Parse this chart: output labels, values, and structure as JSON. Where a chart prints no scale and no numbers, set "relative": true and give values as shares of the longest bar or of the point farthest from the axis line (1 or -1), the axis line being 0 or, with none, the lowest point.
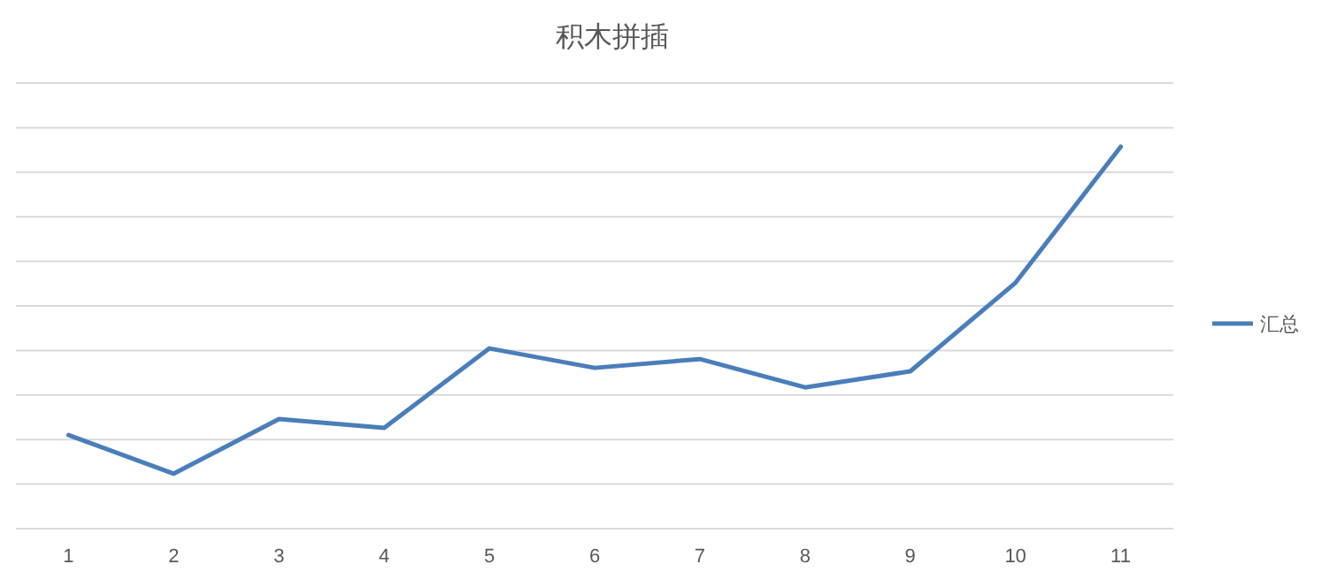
{
  "chart_data": {
    "type": "line",
    "title": "积木拼插",
    "categories": [
      "1",
      "2",
      "3",
      "4",
      "5",
      "6",
      "7",
      "8",
      "9",
      "10",
      "11"
    ],
    "relative": true,
    "grid": true,
    "legend": "right",
    "line_style": "solid",
    "marker": "none",
    "series": [
      {
        "name": "汇总",
        "color": "#4a7ebb",
        "values": [
          0.245,
          0.144,
          0.287,
          0.264,
          0.472,
          0.421,
          0.444,
          0.37,
          0.412,
          0.644,
          1
        ]
      }
    ]
  }
}
